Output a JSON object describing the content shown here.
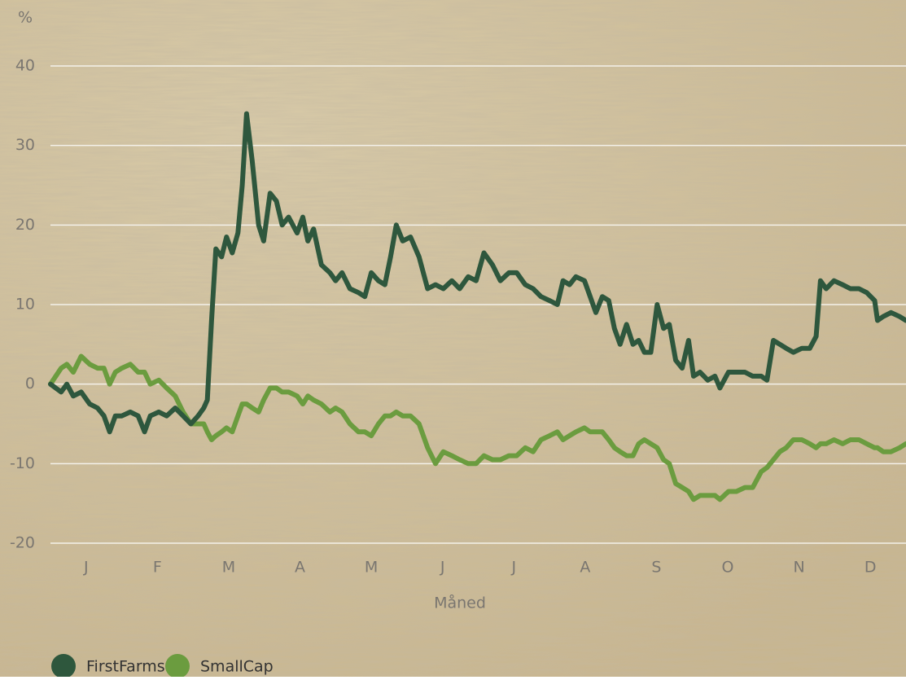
{
  "chart_data": {
    "type": "line",
    "y_label": "%",
    "x_label": "Måned",
    "xlim": [
      0,
      12
    ],
    "xticks": [
      {
        "value": 0.5,
        "label": "J"
      },
      {
        "value": 1.5,
        "label": "F"
      },
      {
        "value": 2.5,
        "label": "M"
      },
      {
        "value": 3.5,
        "label": "A"
      },
      {
        "value": 4.5,
        "label": "M"
      },
      {
        "value": 5.5,
        "label": "J"
      },
      {
        "value": 6.5,
        "label": "J"
      },
      {
        "value": 7.5,
        "label": "A"
      },
      {
        "value": 8.5,
        "label": "S"
      },
      {
        "value": 9.5,
        "label": "O"
      },
      {
        "value": 10.5,
        "label": "N"
      },
      {
        "value": 11.5,
        "label": "D"
      }
    ],
    "ylim": [
      -20,
      40
    ],
    "yticks": [
      -20,
      -10,
      0,
      10,
      20,
      30,
      40
    ],
    "grid": true,
    "x": [
      0,
      0.15,
      0.23,
      0.32,
      0.43,
      0.55,
      0.66,
      0.75,
      0.83,
      0.91,
      1.0,
      1.12,
      1.23,
      1.32,
      1.4,
      1.52,
      1.63,
      1.75,
      1.86,
      1.97,
      2.07,
      2.15,
      2.2,
      2.26,
      2.32,
      2.4,
      2.47,
      2.55,
      2.63,
      2.69,
      2.75,
      2.83,
      2.92,
      2.99,
      3.08,
      3.17,
      3.25,
      3.34,
      3.46,
      3.54,
      3.61,
      3.69,
      3.8,
      3.92,
      4.0,
      4.09,
      4.2,
      4.32,
      4.41,
      4.5,
      4.6,
      4.69,
      4.77,
      4.85,
      4.94,
      5.05,
      5.17,
      5.29,
      5.4,
      5.51,
      5.63,
      5.74,
      5.86,
      5.97,
      6.08,
      6.2,
      6.31,
      6.43,
      6.54,
      6.66,
      6.77,
      6.88,
      7.0,
      7.11,
      7.19,
      7.28,
      7.37,
      7.49,
      7.57,
      7.65,
      7.74,
      7.83,
      7.91,
      7.99,
      8.08,
      8.17,
      8.25,
      8.33,
      8.42,
      8.51,
      8.6,
      8.68,
      8.77,
      8.86,
      8.95,
      9.02,
      9.11,
      9.22,
      9.32,
      9.39,
      9.51,
      9.62,
      9.74,
      9.85,
      9.97,
      10.05,
      10.14,
      10.23,
      10.32,
      10.42,
      10.54,
      10.65,
      10.74,
      10.8,
      10.88,
      10.99,
      11.11,
      11.22,
      11.34,
      11.45,
      11.56,
      11.6,
      11.68,
      11.79,
      11.91,
      12.0
    ],
    "series": [
      {
        "name": "FirstFarms",
        "color": "#2e573d",
        "values": [
          0,
          -1,
          0,
          -1.5,
          -1,
          -2.5,
          -3,
          -4,
          -6,
          -4,
          -4,
          -3.5,
          -4,
          -6,
          -4,
          -3.5,
          -4,
          -3,
          -4,
          -5,
          -4,
          -3,
          -2,
          8,
          17,
          16,
          18.5,
          16.5,
          19,
          25,
          34,
          28,
          20,
          18,
          24,
          23,
          20,
          21,
          19,
          21,
          18,
          19.5,
          15,
          14,
          13,
          14,
          12,
          11.5,
          11,
          14,
          13,
          12.5,
          16,
          20,
          18,
          18.5,
          16,
          12,
          12.5,
          12,
          13,
          12,
          13.5,
          13,
          16.5,
          15,
          13,
          14,
          14,
          12.5,
          12,
          11,
          10.5,
          10,
          13,
          12.5,
          13.5,
          13,
          11,
          9,
          11,
          10.5,
          7,
          5,
          7.5,
          5,
          5.5,
          4,
          4,
          10,
          7,
          7.5,
          3,
          2,
          5.5,
          1,
          1.5,
          0.5,
          1,
          -0.5,
          1.5,
          1.5,
          1.5,
          1,
          1,
          0.5,
          5.5,
          5,
          4.5,
          4,
          4.5,
          4.5,
          6,
          13,
          12,
          13,
          12.5,
          12,
          12,
          11.5,
          10.5,
          8,
          8.5,
          9,
          8.5,
          8
        ]
      },
      {
        "name": "SmallCap",
        "color": "#6b9c3f",
        "values": [
          0,
          2,
          2.5,
          1.5,
          3.5,
          2.5,
          2,
          2,
          0,
          1.5,
          2,
          2.5,
          1.5,
          1.5,
          0,
          0.5,
          -0.5,
          -1.5,
          -3.5,
          -5,
          -5,
          -5,
          -6,
          -7,
          -6.5,
          -6,
          -5.5,
          -6,
          -4,
          -2.5,
          -2.5,
          -3,
          -3.5,
          -2,
          -0.5,
          -0.5,
          -1,
          -1,
          -1.5,
          -2.5,
          -1.5,
          -2,
          -2.5,
          -3.5,
          -3,
          -3.5,
          -5,
          -6,
          -6,
          -6.5,
          -5,
          -4,
          -4,
          -3.5,
          -4,
          -4,
          -5,
          -8,
          -10,
          -8.5,
          -9,
          -9.5,
          -10,
          -10,
          -9,
          -9.5,
          -9.5,
          -9,
          -9,
          -8,
          -8.5,
          -7,
          -6.5,
          -6,
          -7,
          -6.5,
          -6,
          -5.5,
          -6,
          -6,
          -6,
          -7,
          -8,
          -8.5,
          -9,
          -9,
          -7.5,
          -7,
          -7.5,
          -8,
          -9.5,
          -10,
          -12.5,
          -13,
          -13.5,
          -14.5,
          -14,
          -14,
          -14,
          -14.5,
          -13.5,
          -13.5,
          -13,
          -13,
          -11,
          -10.5,
          -9.5,
          -8.5,
          -8,
          -7,
          -7,
          -7.5,
          -8,
          -7.5,
          -7.5,
          -7,
          -7.5,
          -7,
          -7,
          -7.5,
          -8,
          -8,
          -8.5,
          -8.5,
          -8,
          -7.5
        ]
      }
    ]
  }
}
